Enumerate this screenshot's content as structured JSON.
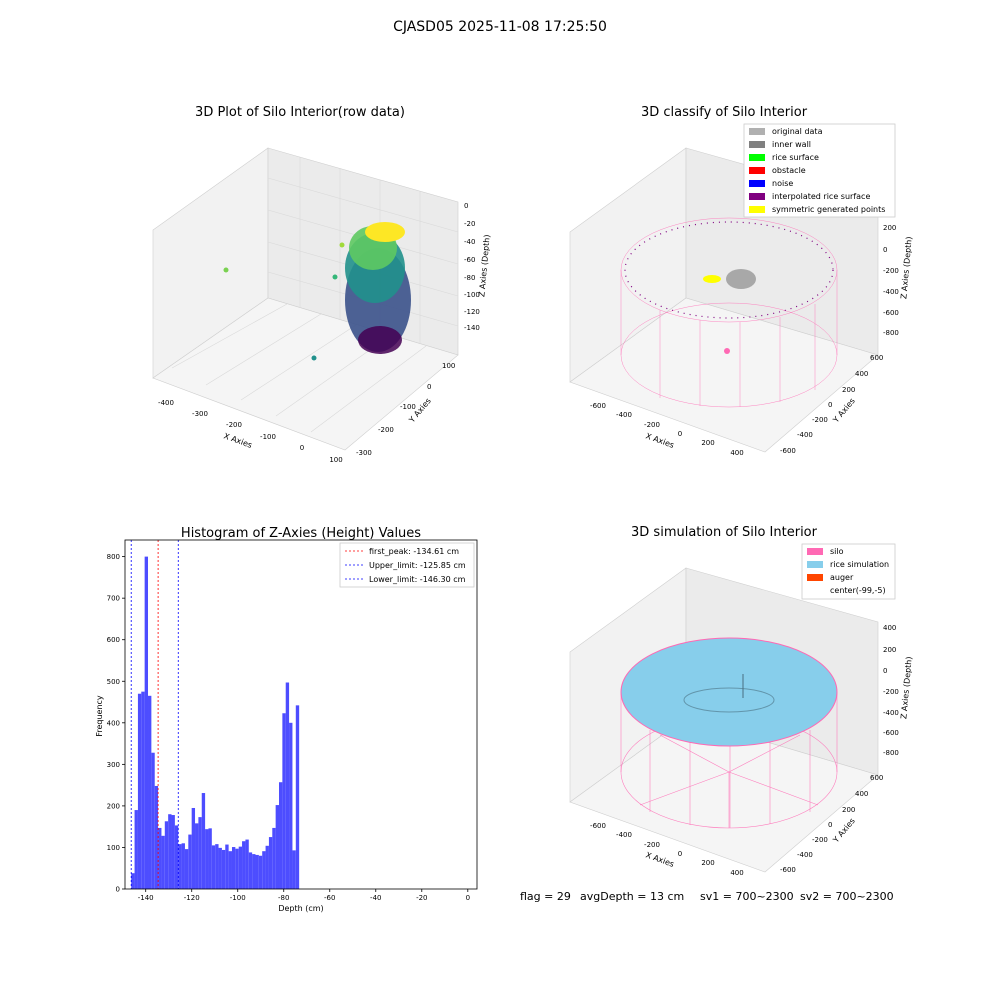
{
  "figure_title": "CJASD05 2025-11-08 17:25:50",
  "colors": {
    "bar": "#4d4dff",
    "first_peak_line": "#ff0000",
    "limit_lines": "#0000ff",
    "silo": "#ff69b4",
    "rice_simulation": "#87ceeb",
    "auger": "#ff4500"
  },
  "status_line": {
    "flag": "flag = 29",
    "avg_depth": "avgDepth = 13 cm",
    "sv1": "sv1 = 700~2300",
    "sv2": "sv2 = 700~2300"
  },
  "chart_data": [
    {
      "type": "scatter",
      "title": "3D Plot of Silo Interior(row data)",
      "xlabel": "X Axies",
      "ylabel": "Y Axies",
      "zlabel": "Z Axies (Depth)",
      "x_ticks": [
        "-400",
        "-300",
        "-200",
        "-100",
        "0",
        "100"
      ],
      "y_ticks": [
        "100",
        "0",
        "-100",
        "-200",
        "-300"
      ],
      "z_ticks": [
        "0",
        "-20",
        "-40",
        "-60",
        "-80",
        "-100",
        "-120",
        "-140"
      ],
      "colormap": "viridis"
    },
    {
      "type": "scatter",
      "title": "3D classify of Silo Interior",
      "xlabel": "X Axies",
      "ylabel": "Y Axies",
      "zlabel": "Z Axies (Depth)",
      "x_ticks": [
        "-600",
        "-400",
        "-200",
        "0",
        "200",
        "400"
      ],
      "y_ticks": [
        "600",
        "400",
        "200",
        "0",
        "-200",
        "-400",
        "-600"
      ],
      "z_ticks": [
        "200",
        "0",
        "-200",
        "-400",
        "-600",
        "-800"
      ],
      "legend": [
        {
          "label": "original data",
          "color": "#b0b0b0"
        },
        {
          "label": "inner wall",
          "color": "#808080"
        },
        {
          "label": "rice surface",
          "color": "#00ff00"
        },
        {
          "label": "obstacle",
          "color": "#ff0000"
        },
        {
          "label": "noise",
          "color": "#0000ff"
        },
        {
          "label": "interpolated rice surface",
          "color": "#800080"
        },
        {
          "label": "symmetric generated points",
          "color": "#ffff00"
        }
      ]
    },
    {
      "type": "bar",
      "title": "Histogram of Z-Axies (Height) Values",
      "xlabel": "Depth (cm)",
      "ylabel": "Frequency",
      "xlim": [
        -149,
        4
      ],
      "ylim": [
        0,
        840
      ],
      "x_ticks": [
        -140,
        -120,
        -100,
        -80,
        -60,
        -40,
        -20,
        0
      ],
      "y_ticks": [
        0,
        100,
        200,
        300,
        400,
        500,
        600,
        700,
        800
      ],
      "bin_start": -146.3,
      "bin_width": 1.46,
      "values": [
        38,
        190,
        470,
        475,
        800,
        465,
        328,
        248,
        147,
        128,
        163,
        180,
        178,
        153,
        108,
        110,
        96,
        131,
        195,
        158,
        173,
        231,
        144,
        146,
        105,
        108,
        99,
        94,
        107,
        91,
        101,
        97,
        102,
        115,
        119,
        88,
        84,
        82,
        80,
        91,
        104,
        125,
        147,
        202,
        257,
        423,
        497,
        400,
        93,
        442
      ],
      "vlines": [
        {
          "label": "first_peak: -134.61 cm",
          "x": -134.61,
          "color": "#ff0000"
        },
        {
          "label": "Upper_limit: -125.85 cm",
          "x": -125.85,
          "color": "#0000ff"
        },
        {
          "label": "Lower_limit: -146.30 cm",
          "x": -146.3,
          "color": "#0000ff"
        }
      ]
    },
    {
      "type": "scatter",
      "title": "3D simulation of Silo Interior",
      "xlabel": "X Axies",
      "ylabel": "Y Axies",
      "zlabel": "Z Axies (Depth)",
      "x_ticks": [
        "-600",
        "-400",
        "-200",
        "0",
        "200",
        "400"
      ],
      "y_ticks": [
        "600",
        "400",
        "200",
        "0",
        "-200",
        "-400",
        "-600"
      ],
      "z_ticks": [
        "400",
        "200",
        "0",
        "-200",
        "-400",
        "-600",
        "-800"
      ],
      "legend": [
        {
          "label": "silo",
          "color": "#ff69b4"
        },
        {
          "label": "rice simulation",
          "color": "#87ceeb"
        },
        {
          "label": "auger",
          "color": "#ff4500"
        },
        {
          "label": "center(-99,-5)",
          "color": ""
        }
      ]
    }
  ]
}
